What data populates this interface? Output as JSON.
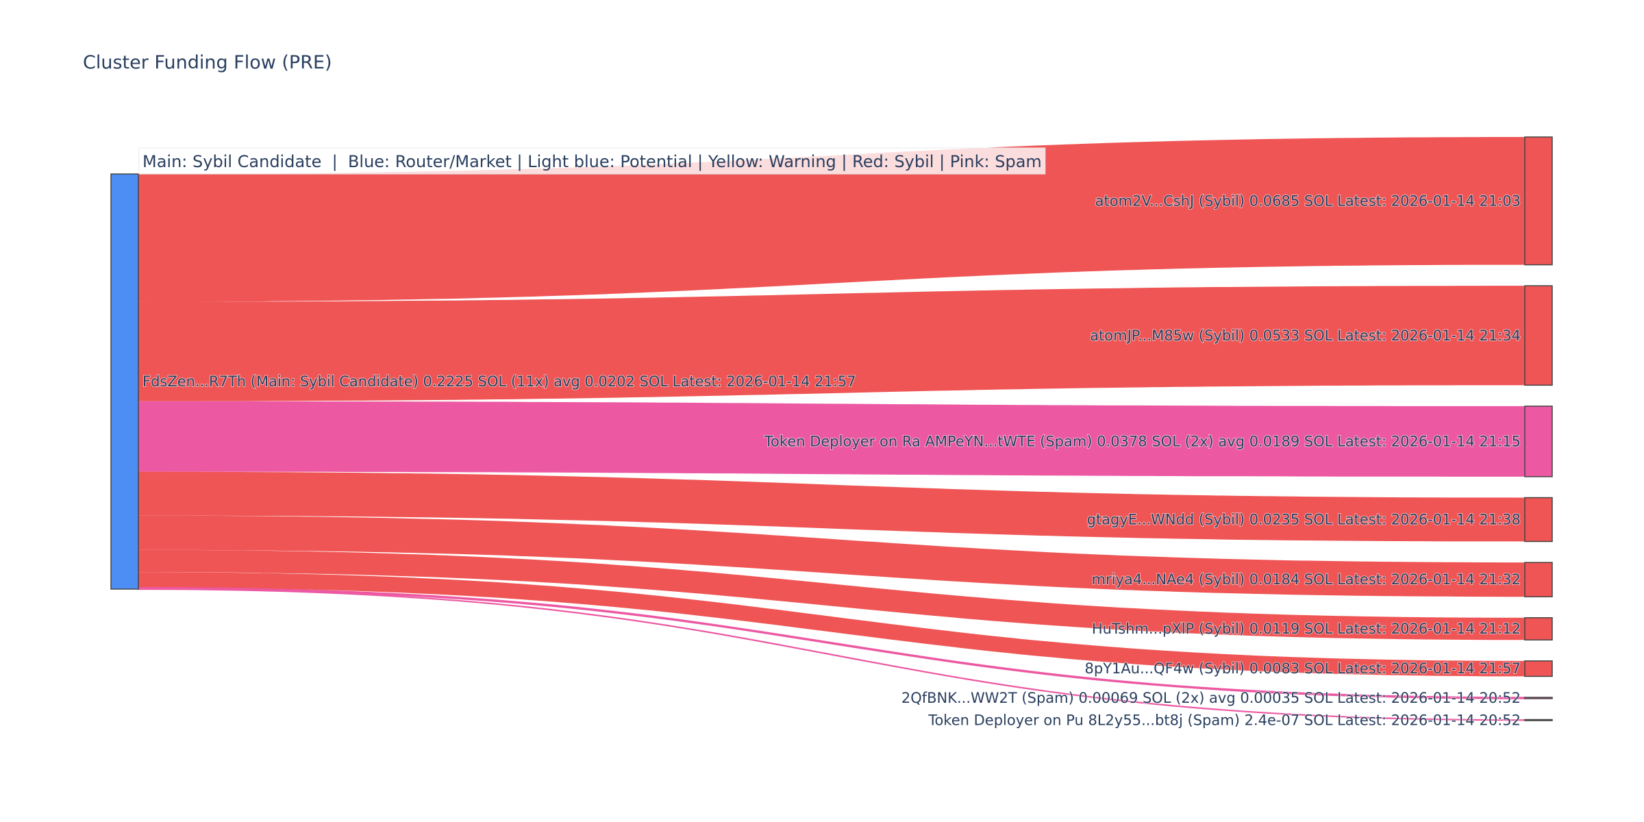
{
  "chart_data": {
    "type": "sankey",
    "title": "Cluster Funding Flow (PRE)",
    "annotation": "Main: Sybil Candidate  |  Blue: Router/Market | Light blue: Potential | Yellow: Warning | Red: Sybil | Pink: Spam",
    "colors": {
      "main": "#4d8ef5",
      "sybil": "#ef5555",
      "spam": "#ec58a2"
    },
    "source": {
      "label": "FdsZen...R7Th (Main: Sybil Candidate) 0.2225 SOL (11x) avg 0.0202 SOL Latest: 2026-01-14 21:57",
      "value": 0.2225,
      "category": "main"
    },
    "targets": [
      {
        "label": "atom2V...CshJ (Sybil) 0.0685 SOL Latest: 2026-01-14 21:03",
        "value": 0.0685,
        "category": "sybil"
      },
      {
        "label": "atomJP...M85w (Sybil) 0.0533 SOL Latest: 2026-01-14 21:34",
        "value": 0.0533,
        "category": "sybil"
      },
      {
        "label": "Token Deployer on Ra AMPeYN...tWTE (Spam) 0.0378 SOL (2x) avg 0.0189 SOL Latest: 2026-01-14 21:15",
        "value": 0.0378,
        "category": "spam"
      },
      {
        "label": "gtagyE...WNdd (Sybil) 0.0235 SOL Latest: 2026-01-14 21:38",
        "value": 0.0235,
        "category": "sybil"
      },
      {
        "label": "mriya4...NAe4 (Sybil) 0.0184 SOL Latest: 2026-01-14 21:32",
        "value": 0.0184,
        "category": "sybil"
      },
      {
        "label": "HuTshm...pXlP (Sybil) 0.0119 SOL Latest: 2026-01-14 21:12",
        "value": 0.0119,
        "category": "sybil"
      },
      {
        "label": "8pY1Au...QF4w (Sybil) 0.0083 SOL Latest: 2026-01-14 21:57",
        "value": 0.0083,
        "category": "sybil"
      },
      {
        "label": "2QfBNK...WW2T (Spam) 0.00069 SOL (2x) avg 0.00035 SOL Latest: 2026-01-14 20:52",
        "value": 0.00069,
        "category": "spam"
      },
      {
        "label": "Token Deployer on Pu 8L2y55...bt8j (Spam) 2.4e-07 SOL Latest: 2026-01-14 20:52",
        "value": 2.4e-07,
        "category": "spam"
      }
    ]
  }
}
